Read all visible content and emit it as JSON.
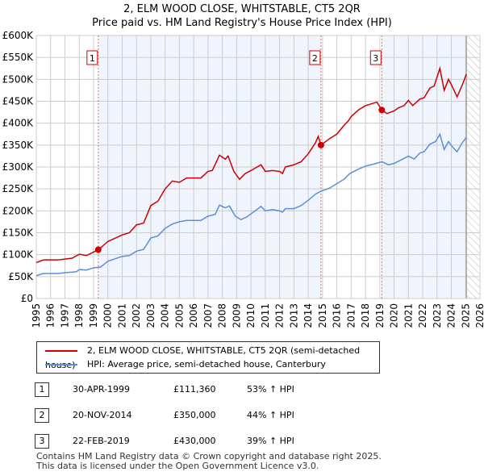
{
  "title": "2, ELM WOOD CLOSE, WHITSTABLE, CT5 2QR",
  "subtitle": "Price paid vs. HM Land Registry's House Price Index (HPI)",
  "chart_data": {
    "type": "line",
    "xlim": [
      1995,
      2026
    ],
    "ylim": [
      0,
      600000
    ],
    "yticks": [
      {
        "v": 0,
        "l": "£0"
      },
      {
        "v": 50000,
        "l": "£50K"
      },
      {
        "v": 100000,
        "l": "£100K"
      },
      {
        "v": 150000,
        "l": "£150K"
      },
      {
        "v": 200000,
        "l": "£200K"
      },
      {
        "v": 250000,
        "l": "£250K"
      },
      {
        "v": 300000,
        "l": "£300K"
      },
      {
        "v": 350000,
        "l": "£350K"
      },
      {
        "v": 400000,
        "l": "£400K"
      },
      {
        "v": 450000,
        "l": "£450K"
      },
      {
        "v": 500000,
        "l": "£500K"
      },
      {
        "v": 550000,
        "l": "£550K"
      },
      {
        "v": 600000,
        "l": "£600K"
      }
    ],
    "xticks": [
      "1995",
      "1996",
      "1997",
      "1998",
      "1999",
      "2000",
      "2001",
      "2002",
      "2003",
      "2004",
      "2005",
      "2006",
      "2007",
      "2008",
      "2009",
      "2010",
      "2011",
      "2012",
      "2013",
      "2014",
      "2015",
      "2016",
      "2017",
      "2018",
      "2019",
      "2020",
      "2021",
      "2022",
      "2023",
      "2024",
      "2025",
      "2026"
    ],
    "data_end": 2025.05,
    "series": [
      {
        "name": "2, ELM WOOD CLOSE, WHITSTABLE, CT5 2QR (semi-detached house)",
        "color": "#cc0000",
        "points": [
          [
            1995,
            82
          ],
          [
            1995.5,
            88
          ],
          [
            1996.5,
            88
          ],
          [
            1997,
            90
          ],
          [
            1997.5,
            92
          ],
          [
            1998,
            101
          ],
          [
            1998.5,
            98
          ],
          [
            1999,
            106
          ],
          [
            1999.33,
            111
          ],
          [
            2000,
            130
          ],
          [
            2001,
            145
          ],
          [
            2001.5,
            150
          ],
          [
            2002,
            168
          ],
          [
            2002.5,
            172
          ],
          [
            2003,
            212
          ],
          [
            2003.5,
            222
          ],
          [
            2004,
            250
          ],
          [
            2004.5,
            268
          ],
          [
            2005,
            265
          ],
          [
            2005.5,
            275
          ],
          [
            2006.5,
            275
          ],
          [
            2007,
            290
          ],
          [
            2007.3,
            292
          ],
          [
            2007.8,
            327
          ],
          [
            2008.2,
            318
          ],
          [
            2008.4,
            325
          ],
          [
            2008.8,
            290
          ],
          [
            2009.2,
            272
          ],
          [
            2009.6,
            285
          ],
          [
            2010,
            292
          ],
          [
            2010.7,
            305
          ],
          [
            2011,
            290
          ],
          [
            2011.5,
            292
          ],
          [
            2012,
            290
          ],
          [
            2012.2,
            285
          ],
          [
            2012.4,
            300
          ],
          [
            2013,
            305
          ],
          [
            2013.5,
            312
          ],
          [
            2014,
            330
          ],
          [
            2014.5,
            355
          ],
          [
            2014.7,
            370
          ],
          [
            2014.89,
            350
          ],
          [
            2015.5,
            365
          ],
          [
            2016,
            375
          ],
          [
            2016.5,
            395
          ],
          [
            2016.8,
            405
          ],
          [
            2017,
            415
          ],
          [
            2017.5,
            430
          ],
          [
            2018,
            440
          ],
          [
            2018.8,
            448
          ],
          [
            2019.14,
            430
          ],
          [
            2019.5,
            422
          ],
          [
            2020,
            428
          ],
          [
            2020.3,
            435
          ],
          [
            2020.7,
            440
          ],
          [
            2021,
            452
          ],
          [
            2021.3,
            440
          ],
          [
            2021.8,
            455
          ],
          [
            2022.1,
            458
          ],
          [
            2022.5,
            480
          ],
          [
            2022.8,
            485
          ],
          [
            2023.2,
            525
          ],
          [
            2023.5,
            475
          ],
          [
            2023.8,
            500
          ],
          [
            2024,
            488
          ],
          [
            2024.4,
            460
          ],
          [
            2024.8,
            490
          ],
          [
            2025.05,
            512
          ]
        ]
      },
      {
        "name": "HPI: Average price, semi-detached house, Canterbury",
        "color": "#5b8fd6",
        "points": [
          [
            1995,
            52
          ],
          [
            1995.5,
            57
          ],
          [
            1996.5,
            57
          ],
          [
            1997,
            59
          ],
          [
            1997.8,
            61
          ],
          [
            1998,
            66
          ],
          [
            1998.5,
            65
          ],
          [
            1999,
            70
          ],
          [
            1999.5,
            72
          ],
          [
            2000,
            85
          ],
          [
            2001,
            96
          ],
          [
            2001.5,
            98
          ],
          [
            2002,
            108
          ],
          [
            2002.5,
            112
          ],
          [
            2003,
            138
          ],
          [
            2003.5,
            143
          ],
          [
            2004,
            160
          ],
          [
            2004.5,
            170
          ],
          [
            2005,
            175
          ],
          [
            2005.5,
            178
          ],
          [
            2006.5,
            178
          ],
          [
            2007,
            188
          ],
          [
            2007.5,
            192
          ],
          [
            2007.8,
            213
          ],
          [
            2008.2,
            207
          ],
          [
            2008.5,
            211
          ],
          [
            2008.9,
            188
          ],
          [
            2009.3,
            180
          ],
          [
            2009.7,
            186
          ],
          [
            2010,
            193
          ],
          [
            2010.7,
            210
          ],
          [
            2011,
            200
          ],
          [
            2011.5,
            203
          ],
          [
            2012,
            200
          ],
          [
            2012.2,
            197
          ],
          [
            2012.4,
            205
          ],
          [
            2013,
            205
          ],
          [
            2013.5,
            212
          ],
          [
            2014,
            224
          ],
          [
            2014.5,
            238
          ],
          [
            2014.9,
            245
          ],
          [
            2015.5,
            252
          ],
          [
            2016,
            262
          ],
          [
            2016.5,
            272
          ],
          [
            2016.9,
            285
          ],
          [
            2017.5,
            295
          ],
          [
            2018,
            302
          ],
          [
            2018.5,
            306
          ],
          [
            2019.15,
            312
          ],
          [
            2019.6,
            305
          ],
          [
            2020,
            308
          ],
          [
            2020.6,
            318
          ],
          [
            2021,
            325
          ],
          [
            2021.4,
            318
          ],
          [
            2021.8,
            332
          ],
          [
            2022.1,
            335
          ],
          [
            2022.5,
            352
          ],
          [
            2022.9,
            358
          ],
          [
            2023.2,
            375
          ],
          [
            2023.5,
            340
          ],
          [
            2023.8,
            358
          ],
          [
            2024.1,
            345
          ],
          [
            2024.4,
            335
          ],
          [
            2024.7,
            352
          ],
          [
            2025.05,
            368
          ]
        ]
      }
    ],
    "sales": [
      {
        "n": "1",
        "x": 1999.33,
        "y": 111.36
      },
      {
        "n": "2",
        "x": 2014.89,
        "y": 350
      },
      {
        "n": "3",
        "x": 2019.14,
        "y": 430
      }
    ]
  },
  "legend": [
    "2, ELM WOOD CLOSE, WHITSTABLE, CT5 2QR (semi-detached house)",
    "HPI: Average price, semi-detached house, Canterbury"
  ],
  "table": [
    {
      "n": "1",
      "date": "30-APR-1999",
      "price": "£111,360",
      "hpi": "53% ↑ HPI"
    },
    {
      "n": "2",
      "date": "20-NOV-2014",
      "price": "£350,000",
      "hpi": "44% ↑ HPI"
    },
    {
      "n": "3",
      "date": "22-FEB-2019",
      "price": "£430,000",
      "hpi": "39% ↑ HPI"
    }
  ],
  "footer": [
    "Contains HM Land Registry data © Crown copyright and database right 2025.",
    "This data is licensed under the Open Government Licence v3.0."
  ]
}
